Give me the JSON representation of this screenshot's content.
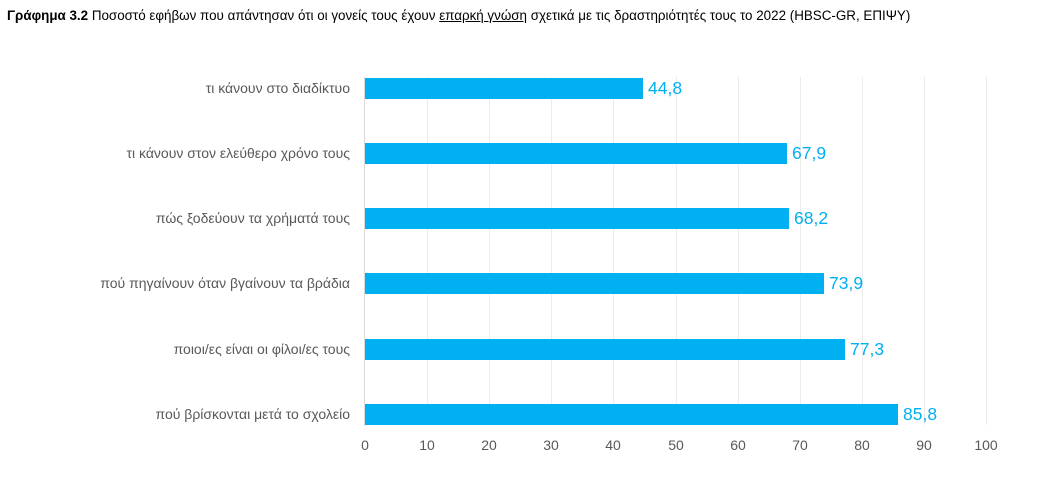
{
  "caption": {
    "figure_label": "Γράφημα  3.2",
    "text_before": " Ποσοστό εφήβων που απάντησαν ότι οι γονείς τους έχουν ",
    "underlined": "επαρκή γνώση",
    "text_after": " σχετικά με τις δραστηριότητές τους το 2022 (HBSC-GR, ΕΠΙΨΥ)"
  },
  "colors": {
    "bar": "#00B0F0",
    "value_label": "#00B0F0",
    "axis_text": "#595959",
    "gridline": "#ECECEC"
  },
  "chart_data": {
    "type": "bar",
    "orientation": "horizontal",
    "title": "Γράφημα 3.2 Ποσοστό εφήβων που απάντησαν ότι οι γονείς τους έχουν επαρκή γνώση σχετικά με τις δραστηριότητές τους το 2022 (HBSC-GR, ΕΠΙΨΥ)",
    "categories": [
      "τι κάνουν στο διαδίκτυο",
      "τι κάνουν στον ελεύθερο χρόνο τους",
      "πώς ξοδεύουν τα χρήματά τους",
      "πού πηγαίνουν όταν βγαίνουν τα βράδια",
      "ποιοι/ες είναι οι φίλοι/ες τους",
      "πού βρίσκονται μετά το σχολείο"
    ],
    "values": [
      44.8,
      67.9,
      68.2,
      73.9,
      77.3,
      85.8
    ],
    "value_labels": [
      "44,8",
      "67,9",
      "68,2",
      "73,9",
      "77,3",
      "85,8"
    ],
    "xlabel": "",
    "ylabel": "",
    "xlim": [
      0,
      100
    ],
    "x_ticks": [
      "0",
      "10",
      "20",
      "30",
      "40",
      "50",
      "60",
      "70",
      "80",
      "90",
      "100"
    ],
    "grid": "vertical",
    "legend": "none"
  }
}
